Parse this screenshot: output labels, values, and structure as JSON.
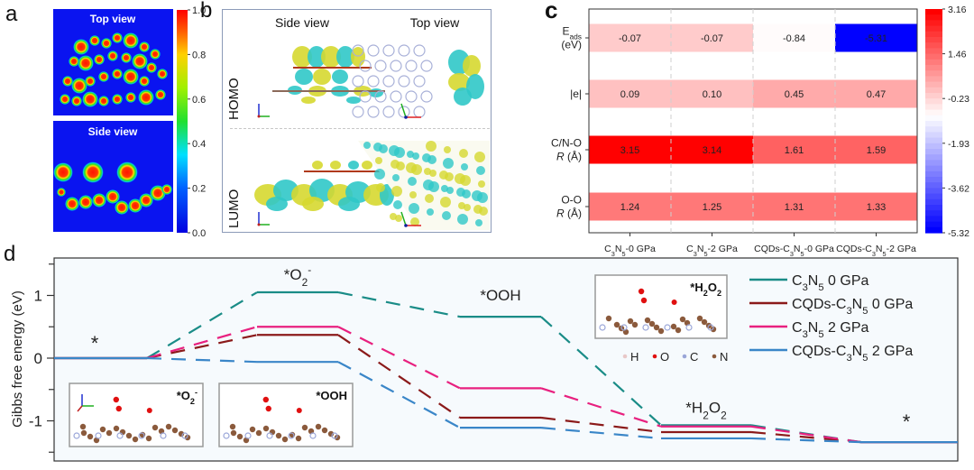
{
  "panel_labels": {
    "a": "a",
    "b": "b",
    "c": "c",
    "d": "d"
  },
  "panel_a": {
    "top_title": "Top view",
    "bottom_title": "Side view",
    "colorbar": {
      "min": 0.0,
      "max": 1.0,
      "ticks": [
        "1.0",
        "0.8",
        "0.6",
        "0.4",
        "0.2",
        "0.0"
      ]
    }
  },
  "panel_b": {
    "col_headers": [
      "Side view",
      "Top view"
    ],
    "row_labels": [
      "HOMO",
      "LUMO"
    ]
  },
  "chart_data": [
    {
      "type": "heatmap",
      "panel": "c",
      "columns": [
        "C3N5-0 GPa",
        "C3N5-2 GPa",
        "CQDs-C3N5-0 GPa",
        "CQDs-C3N5-2 GPa"
      ],
      "column_labels_rich": [
        [
          [
            "C",
            ""
          ],
          [
            "3",
            "sub"
          ],
          [
            "N",
            ""
          ],
          [
            "5",
            "sub"
          ],
          [
            "-0 GPa",
            ""
          ]
        ],
        [
          [
            "C",
            ""
          ],
          [
            "3",
            "sub"
          ],
          [
            "N",
            ""
          ],
          [
            "5",
            "sub"
          ],
          [
            "-2 GPa",
            ""
          ]
        ],
        [
          [
            "CQDs-C",
            ""
          ],
          [
            "3",
            "sub"
          ],
          [
            "N",
            ""
          ],
          [
            "5",
            "sub"
          ],
          [
            "-0 GPa",
            ""
          ]
        ],
        [
          [
            "CQDs-C",
            ""
          ],
          [
            "3",
            "sub"
          ],
          [
            "N",
            ""
          ],
          [
            "5",
            "sub"
          ],
          [
            "-2 GPa",
            ""
          ]
        ]
      ],
      "rows": [
        {
          "label_lines": [
            [
              [
                "E",
                ""
              ],
              [
                "ads",
                "sub"
              ]
            ],
            [
              [
                "(eV)",
                ""
              ]
            ]
          ],
          "label": "Eads (eV)",
          "values": [
            -0.07,
            -0.07,
            -0.84,
            -5.31
          ]
        },
        {
          "label_lines": [
            [
              [
                "|e|",
                ""
              ]
            ]
          ],
          "label": "|e|",
          "values": [
            0.09,
            0.1,
            0.45,
            0.47
          ]
        },
        {
          "label_lines": [
            [
              [
                "C/N-O",
                ""
              ]
            ],
            [
              [
                "R",
                "it"
              ],
              [
                " (Å)",
                ""
              ]
            ]
          ],
          "label": "C/N-O R (Å)",
          "values": [
            3.15,
            3.14,
            1.61,
            1.59
          ]
        },
        {
          "label_lines": [
            [
              [
                "O-O",
                ""
              ]
            ],
            [
              [
                "R",
                "it"
              ],
              [
                " (Å)",
                ""
              ]
            ]
          ],
          "label": "O-O R (Å)",
          "values": [
            1.24,
            1.25,
            1.31,
            1.33
          ]
        }
      ],
      "value_labels": [
        [
          "-0.07",
          "-0.07",
          "-0.84",
          "-5.31"
        ],
        [
          "0.09",
          "0.10",
          "0.45",
          "0.47"
        ],
        [
          "3.15",
          "3.14",
          "1.61",
          "1.59"
        ],
        [
          "1.24",
          "1.25",
          "1.31",
          "1.33"
        ]
      ],
      "colorbar": {
        "min": -5.32,
        "max": 3.16,
        "ticks": [
          "3.16",
          "1.46",
          "-0.23",
          "-1.93",
          "-3.62",
          "-5.32"
        ],
        "low_color": "#0000ff",
        "mid_color": "#ffffff",
        "high_color": "#ff0000"
      }
    },
    {
      "type": "line",
      "panel": "d",
      "title": "",
      "xlabel": "",
      "ylabel": "Gibbs free energy (eV)",
      "ylim": [
        -1.6,
        1.6
      ],
      "yticks": [
        1,
        0,
        -1
      ],
      "yticks_minor": [
        1.5,
        0.5,
        -0.5,
        -1.5
      ],
      "ytick_labels": [
        "1",
        "0",
        "-1"
      ],
      "steps": [
        "*",
        "*O2-",
        "*OOH",
        "*H2O2",
        "*"
      ],
      "step_labels_rich": [
        [
          [
            "*",
            ""
          ]
        ],
        [
          [
            "*O",
            ""
          ],
          [
            "2",
            "sub"
          ],
          [
            "-",
            "sup"
          ]
        ],
        [
          [
            "*OOH",
            ""
          ]
        ],
        [
          [
            "*H",
            ""
          ],
          [
            "2",
            "sub"
          ],
          [
            "O",
            ""
          ],
          [
            "2",
            "sub"
          ]
        ],
        [
          [
            "*",
            ""
          ]
        ]
      ],
      "series": [
        {
          "name": "C3N5 0 GPa",
          "legend_rich": [
            [
              "C",
              ""
            ],
            [
              "3",
              "sub"
            ],
            [
              "N",
              ""
            ],
            [
              "5",
              "sub"
            ],
            [
              " 0 GPa",
              ""
            ]
          ],
          "color": "#1a8c87",
          "values": [
            0.0,
            1.05,
            0.66,
            -1.07,
            -1.34
          ]
        },
        {
          "name": "CQDs-C3N5 0 GPa",
          "legend_rich": [
            [
              "CQDs-C",
              ""
            ],
            [
              "3",
              "sub"
            ],
            [
              "N",
              ""
            ],
            [
              "5",
              "sub"
            ],
            [
              " 0 GPa",
              ""
            ]
          ],
          "color": "#8b1a1a",
          "values": [
            0.0,
            0.37,
            -0.95,
            -1.18,
            -1.34
          ]
        },
        {
          "name": "C3N5 2 GPa",
          "legend_rich": [
            [
              "C",
              ""
            ],
            [
              "3",
              "sub"
            ],
            [
              "N",
              ""
            ],
            [
              "5",
              "sub"
            ],
            [
              " 2 GPa",
              ""
            ]
          ],
          "color": "#e8207f",
          "values": [
            0.0,
            0.5,
            -0.48,
            -1.09,
            -1.34
          ]
        },
        {
          "name": "CQDs-C3N5 2 GPa",
          "legend_rich": [
            [
              "CQDs-C",
              ""
            ],
            [
              "3",
              "sub"
            ],
            [
              "N",
              ""
            ],
            [
              "5",
              "sub"
            ],
            [
              " 2 GPa",
              ""
            ]
          ],
          "color": "#3a86c8",
          "values": [
            0.0,
            -0.06,
            -1.11,
            -1.28,
            -1.34
          ]
        }
      ],
      "legend_position": "top-right",
      "insets": [
        {
          "label_rich": [
            [
              "*O",
              ""
            ],
            [
              "2",
              "sub"
            ],
            [
              "-",
              "sup"
            ]
          ]
        },
        {
          "label_rich": [
            [
              "*OOH",
              ""
            ]
          ]
        },
        {
          "label_rich": [
            [
              "*H",
              ""
            ],
            [
              "2",
              "sub"
            ],
            [
              "O",
              ""
            ],
            [
              "2",
              "sub"
            ]
          ]
        }
      ],
      "atom_legend": [
        {
          "symbol": "H",
          "color": "#e8c8c8"
        },
        {
          "symbol": "O",
          "color": "#e01010"
        },
        {
          "symbol": "C",
          "color": "#9aa6d8"
        },
        {
          "symbol": "N",
          "color": "#8b5a3c"
        }
      ]
    }
  ]
}
